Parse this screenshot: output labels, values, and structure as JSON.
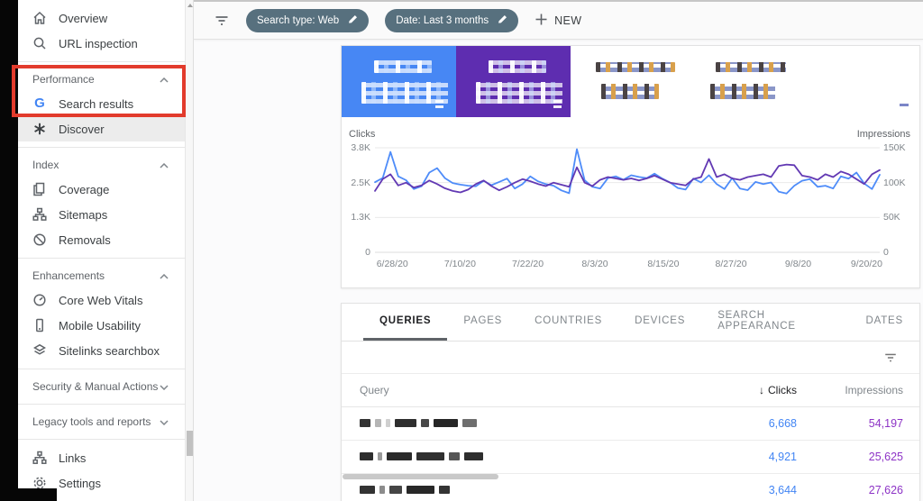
{
  "topbar": {
    "filter_icon": "filter-list-icon",
    "chips": [
      {
        "label": "Search type: Web",
        "edit_icon": "pencil-icon"
      },
      {
        "label": "Date: Last 3 months",
        "edit_icon": "pencil-icon"
      }
    ],
    "new_button": "NEW",
    "chip_color": "#57707e"
  },
  "sidebar": {
    "sections": [
      {
        "items": [
          {
            "label": "Overview",
            "icon": "home-icon"
          },
          {
            "label": "URL inspection",
            "icon": "search-icon"
          }
        ]
      },
      {
        "header": "Performance",
        "expanded": true,
        "items": [
          {
            "label": "Search results",
            "icon": "google-g-icon"
          },
          {
            "label": "Discover",
            "icon": "discover-asterisk-icon",
            "selected": true
          }
        ]
      },
      {
        "header": "Index",
        "expanded": true,
        "items": [
          {
            "label": "Coverage",
            "icon": "coverage-pages-icon"
          },
          {
            "label": "Sitemaps",
            "icon": "sitemaps-tree-icon"
          },
          {
            "label": "Removals",
            "icon": "removals-blocked-icon"
          }
        ]
      },
      {
        "header": "Enhancements",
        "expanded": true,
        "items": [
          {
            "label": "Core Web Vitals",
            "icon": "speedometer-icon"
          },
          {
            "label": "Mobile Usability",
            "icon": "smartphone-icon"
          },
          {
            "label": "Sitelinks searchbox",
            "icon": "layers-icon"
          }
        ]
      },
      {
        "header": "Security & Manual Actions",
        "expanded": false,
        "items": []
      },
      {
        "header": "Legacy tools and reports",
        "expanded": false,
        "items": []
      },
      {
        "items": [
          {
            "label": "Links",
            "icon": "links-tree-icon"
          },
          {
            "label": "Settings",
            "icon": "gear-icon"
          }
        ]
      }
    ]
  },
  "cards": {
    "clicks_color": "#4787f4",
    "impressions_color": "#5e2db0"
  },
  "chart_data": {
    "type": "line",
    "left_axis": {
      "label": "Clicks",
      "ticks": [
        "3.8K",
        "2.5K",
        "1.3K",
        "0"
      ],
      "max": 3800
    },
    "right_axis": {
      "label": "Impressions",
      "ticks": [
        "150K",
        "100K",
        "50K",
        "0"
      ],
      "max": 150000
    },
    "x_ticks": [
      "6/28/20",
      "7/10/20",
      "7/22/20",
      "8/3/20",
      "8/15/20",
      "8/27/20",
      "9/8/20",
      "9/20/20"
    ],
    "grid": true,
    "legend_position": "none",
    "series": [
      {
        "name": "Clicks",
        "color": "#4e8cf9",
        "max": 3800,
        "values": [
          2550,
          2700,
          3650,
          2760,
          2620,
          2300,
          2400,
          2900,
          3060,
          2700,
          2520,
          2460,
          2420,
          2400,
          2600,
          2440,
          2560,
          2680,
          2320,
          2480,
          2760,
          2580,
          2480,
          2420,
          2250,
          2150,
          3750,
          2620,
          2380,
          2320,
          2700,
          2760,
          2640,
          2800,
          2740,
          2700,
          2860,
          2680,
          2540,
          2340,
          2280,
          2680,
          2540,
          2800,
          2480,
          2300,
          2700,
          2320,
          2260,
          2560,
          2480,
          2540,
          2200,
          2140,
          2420,
          2600,
          2660,
          2380,
          2420,
          2320,
          2760,
          2680,
          2900,
          2500,
          2300,
          2820
        ]
      },
      {
        "name": "Impressions",
        "color": "#6239b3",
        "max": 150000,
        "values": [
          88000,
          105000,
          112000,
          96000,
          100000,
          93000,
          96000,
          103000,
          98000,
          92000,
          88000,
          86000,
          90000,
          98000,
          103000,
          95000,
          89000,
          94000,
          100000,
          105000,
          102000,
          98000,
          95000,
          100000,
          97000,
          94000,
          122000,
          100000,
          95000,
          104000,
          108000,
          106000,
          104000,
          106000,
          103000,
          106000,
          110000,
          105000,
          100000,
          98000,
          96000,
          105000,
          108000,
          134000,
          108000,
          112000,
          106000,
          104000,
          108000,
          110000,
          112000,
          108000,
          124000,
          126000,
          125000,
          110000,
          108000,
          104000,
          112000,
          108000,
          116000,
          112000,
          105000,
          98000,
          112000,
          118000
        ]
      }
    ]
  },
  "table": {
    "tabs": [
      {
        "label": "QUERIES",
        "active": true
      },
      {
        "label": "PAGES"
      },
      {
        "label": "COUNTRIES"
      },
      {
        "label": "DEVICES"
      },
      {
        "label": "SEARCH APPEARANCE"
      },
      {
        "label": "DATES"
      }
    ],
    "filter_icon": "filter-list-icon",
    "columns": {
      "query": "Query",
      "clicks": "Clicks",
      "impressions": "Impressions"
    },
    "sort_icon": "↓",
    "rows": [
      {
        "clicks": "6,668",
        "impressions": "54,197"
      },
      {
        "clicks": "4,921",
        "impressions": "25,625"
      },
      {
        "clicks": "3,644",
        "impressions": "27,626"
      }
    ]
  }
}
